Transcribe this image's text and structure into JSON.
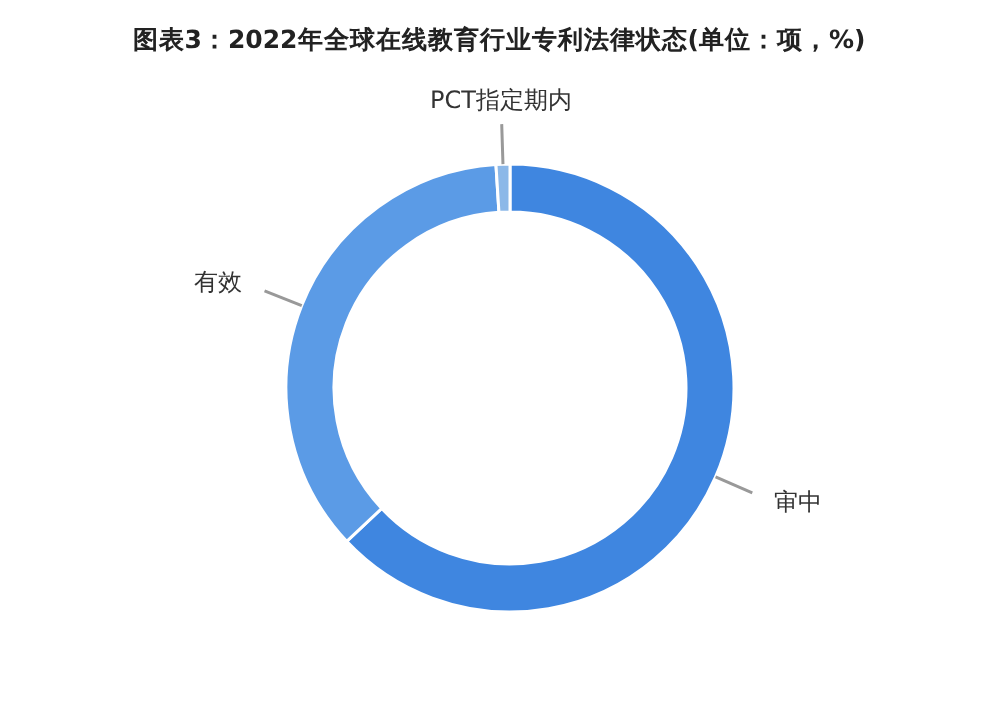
{
  "chart_data": {
    "type": "donut",
    "title": "图表3：2022年全球在线教育行业专利法律状态(单位：项，%)",
    "categories": [
      "审中",
      "有效",
      "PCT指定期内"
    ],
    "values": [
      63,
      36,
      1
    ],
    "colors": [
      "#3f86e0",
      "#5b9be6",
      "#8cb8e8"
    ],
    "legend": false
  }
}
